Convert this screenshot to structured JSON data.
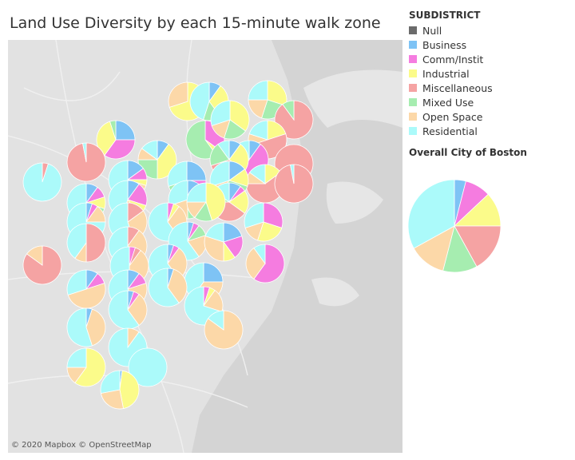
{
  "title": "Land Use Diversity by each 15-minute walk zone",
  "attribution": "© 2020 Mapbox © OpenStreetMap",
  "legend": {
    "title": "SUBDISTRICT",
    "items": [
      {
        "label": "Null",
        "color": "#6b6b6b"
      },
      {
        "label": "Business",
        "color": "#7ec3f5"
      },
      {
        "label": "Comm/Instit",
        "color": "#f57ce0"
      },
      {
        "label": "Industrial",
        "color": "#fbfb8a"
      },
      {
        "label": "Miscellaneous",
        "color": "#f5a3a3"
      },
      {
        "label": "Mixed Use",
        "color": "#a6edb0"
      },
      {
        "label": "Open Space",
        "color": "#fcd8a8"
      },
      {
        "label": "Residential",
        "color": "#abfafa"
      }
    ]
  },
  "overall": {
    "title": "Overall City of Boston",
    "shares": {
      "Business": 0.04,
      "Comm/Instit": 0.09,
      "Industrial": 0.12,
      "Miscellaneous": 0.17,
      "Mixed Use": 0.12,
      "Open Space": 0.13,
      "Residential": 0.33
    }
  },
  "zones": [
    {
      "shares": {
        "Industrial": 0.7,
        "Open Space": 0.3
      }
    },
    {
      "shares": {
        "Residential": 0.45,
        "Business": 0.1,
        "Mixed Use": 0.15,
        "Industrial": 0.3
      }
    },
    {
      "shares": {
        "Residential": 0.25,
        "Industrial": 0.3,
        "Mixed Use": 0.25,
        "Open Space": 0.2
      }
    },
    {
      "shares": {
        "Miscellaneous": 0.9,
        "Mixed Use": 0.1
      }
    },
    {
      "shares": {
        "Business": 0.25,
        "Comm/Instit": 0.35,
        "Mixed Use": 0.05,
        "Industrial": 0.35
      }
    },
    {
      "shares": {
        "Business": 0.1,
        "Industrial": 0.4,
        "Mixed Use": 0.25,
        "Open Space": 0.1,
        "Residential": 0.15
      }
    },
    {
      "shares": {
        "Residential": 0.2,
        "Miscellaneous": 0.5,
        "Industrial": 0.2,
        "Open Space": 0.1
      }
    },
    {
      "shares": {
        "Miscellaneous": 1.0
      }
    },
    {
      "shares": {
        "Business": 0.1,
        "Comm/Instit": 0.5,
        "Industrial": 0.05,
        "Residential": 0.35
      }
    },
    {
      "shares": {
        "Comm/Instit": 0.35,
        "Industrial": 0.05,
        "Mixed Use": 0.6
      }
    },
    {
      "shares": {
        "Residential": 0.3,
        "Industrial": 0.35,
        "Mixed Use": 0.2,
        "Open Space": 0.15
      }
    },
    {
      "shares": {
        "Business": 0.1,
        "Industrial": 0.25,
        "Miscellaneous": 0.35,
        "Mixed Use": 0.2,
        "Residential": 0.1
      }
    },
    {
      "shares": {
        "Residential": 0.15,
        "Miscellaneous": 0.6,
        "Industrial": 0.15,
        "Open Space": 0.1
      }
    },
    {
      "shares": {
        "Miscellaneous": 0.97,
        "Residential": 0.03
      }
    },
    {
      "shares": {
        "Miscellaneous": 0.97,
        "Residential": 0.03
      }
    },
    {
      "shares": {
        "Business": 0.15,
        "Comm/Instit": 0.1,
        "Industrial": 0.05,
        "Open Space": 0.1,
        "Residential": 0.6
      }
    },
    {
      "shares": {
        "Business": 0.25,
        "Comm/Instit": 0.15,
        "Industrial": 0.15,
        "Mixed Use": 0.15,
        "Residential": 0.3
      }
    },
    {
      "shares": {
        "Business": 0.15,
        "Mixed Use": 0.3,
        "Industrial": 0.15,
        "Open Space": 0.1,
        "Residential": 0.3
      }
    },
    {
      "shares": {
        "Business": 0.1,
        "Comm/Instit": 0.05,
        "Miscellaneous": 0.4,
        "Industrial": 0.2,
        "Mixed Use": 0.1,
        "Residential": 0.15
      }
    },
    {
      "shares": {
        "Miscellaneous": 0.05,
        "Residential": 0.95
      }
    },
    {
      "shares": {
        "Business": 0.1,
        "Comm/Instit": 0.1,
        "Industrial": 0.1,
        "Mixed Use": 0.05,
        "Open Space": 0.1,
        "Residential": 0.55
      }
    },
    {
      "shares": {
        "Business": 0.1,
        "Comm/Instit": 0.2,
        "Industrial": 0.1,
        "Open Space": 0.15,
        "Residential": 0.45
      }
    },
    {
      "shares": {
        "Business": 0.1,
        "Comm/Instit": 0.1,
        "Industrial": 0.2,
        "Mixed Use": 0.1,
        "Open Space": 0.2,
        "Residential": 0.3
      }
    },
    {
      "shares": {
        "Industrial": 0.45,
        "Mixed Use": 0.15,
        "Open Space": 0.15,
        "Residential": 0.25
      }
    },
    {
      "shares": {
        "Comm/Instit": 0.3,
        "Industrial": 0.25,
        "Open Space": 0.15,
        "Residential": 0.3
      }
    },
    {
      "shares": {
        "Business": 0.05,
        "Comm/Instit": 0.05,
        "Open Space": 0.15,
        "Residential": 0.75
      }
    },
    {
      "shares": {
        "Miscellaneous": 0.15,
        "Open Space": 0.3,
        "Residential": 0.55
      }
    },
    {
      "shares": {
        "Comm/Instit": 0.05,
        "Industrial": 0.05,
        "Open Space": 0.3,
        "Residential": 0.6
      }
    },
    {
      "shares": {
        "Business": 0.05,
        "Comm/Instit": 0.05,
        "Mixed Use": 0.1,
        "Open Space": 0.2,
        "Residential": 0.6
      }
    },
    {
      "shares": {
        "Business": 0.2,
        "Comm/Instit": 0.2,
        "Industrial": 0.1,
        "Open Space": 0.3,
        "Residential": 0.2
      }
    },
    {
      "shares": {
        "Comm/Instit": 0.6,
        "Open Space": 0.3,
        "Residential": 0.1
      }
    },
    {
      "shares": {
        "Miscellaneous": 0.85,
        "Open Space": 0.15
      }
    },
    {
      "shares": {
        "Miscellaneous": 0.5,
        "Open Space": 0.1,
        "Residential": 0.4
      }
    },
    {
      "shares": {
        "Miscellaneous": 0.1,
        "Open Space": 0.3,
        "Residential": 0.6
      }
    },
    {
      "shares": {
        "Miscellaneous": 0.05,
        "Comm/Instit": 0.05,
        "Open Space": 0.4,
        "Residential": 0.5
      }
    },
    {
      "shares": {
        "Business": 0.05,
        "Comm/Instit": 0.05,
        "Open Space": 0.3,
        "Residential": 0.6
      }
    },
    {
      "shares": {
        "Business": 0.25,
        "Open Space": 0.35,
        "Residential": 0.4
      }
    },
    {
      "shares": {
        "Business": 0.1,
        "Comm/Instit": 0.1,
        "Open Space": 0.5,
        "Residential": 0.3
      }
    },
    {
      "shares": {
        "Business": 0.1,
        "Comm/Instit": 0.1,
        "Open Space": 0.2,
        "Residential": 0.6
      }
    },
    {
      "shares": {
        "Business": 0.05,
        "Open Space": 0.35,
        "Residential": 0.6
      }
    },
    {
      "shares": {
        "Comm/Instit": 0.05,
        "Industrial": 0.05,
        "Open Space": 0.2,
        "Residential": 0.7
      }
    },
    {
      "shares": {
        "Business": 0.05,
        "Comm/Instit": 0.05,
        "Open Space": 0.3,
        "Residential": 0.6
      }
    },
    {
      "shares": {
        "Open Space": 0.85,
        "Residential": 0.15
      }
    },
    {
      "shares": {
        "Business": 0.05,
        "Open Space": 0.4,
        "Residential": 0.55
      }
    },
    {
      "shares": {
        "Open Space": 0.1,
        "Residential": 0.9
      }
    },
    {
      "shares": {
        "Industrial": 0.6,
        "Open Space": 0.15,
        "Residential": 0.25
      }
    },
    {
      "shares": {
        "Residential": 1.0
      }
    },
    {
      "shares": {
        "Business": 0.02,
        "Industrial": 0.45,
        "Open Space": 0.25,
        "Residential": 0.28
      }
    }
  ]
}
